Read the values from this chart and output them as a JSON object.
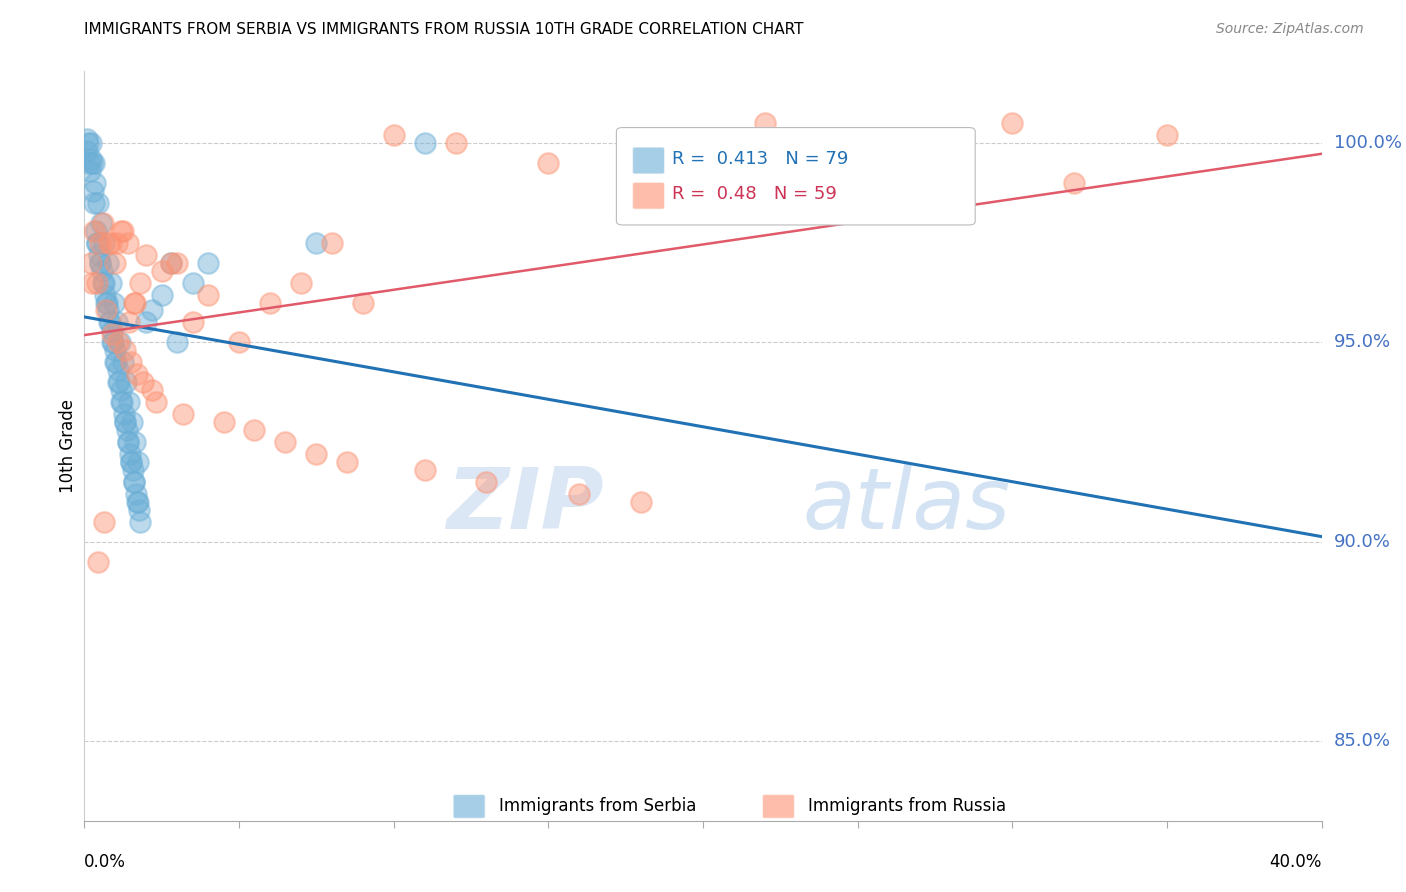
{
  "title": "IMMIGRANTS FROM SERBIA VS IMMIGRANTS FROM RUSSIA 10TH GRADE CORRELATION CHART",
  "source": "Source: ZipAtlas.com",
  "ylabel": "10th Grade",
  "right_yticks": [
    85.0,
    90.0,
    95.0,
    100.0
  ],
  "serbia_R": 0.413,
  "serbia_N": 79,
  "russia_R": 0.48,
  "russia_N": 59,
  "serbia_color": "#6baed6",
  "russia_color": "#fc9272",
  "serbia_line_color": "#2171b5",
  "russia_line_color": "#e05a6a",
  "serbia_x": [
    0.08,
    0.1,
    0.12,
    0.15,
    0.18,
    0.2,
    0.22,
    0.25,
    0.28,
    0.3,
    0.32,
    0.35,
    0.38,
    0.4,
    0.42,
    0.45,
    0.48,
    0.5,
    0.52,
    0.55,
    0.58,
    0.6,
    0.62,
    0.65,
    0.68,
    0.7,
    0.72,
    0.75,
    0.78,
    0.8,
    0.82,
    0.85,
    0.88,
    0.9,
    0.92,
    0.95,
    0.98,
    1.0,
    1.02,
    1.05,
    1.08,
    1.1,
    1.12,
    1.15,
    1.18,
    1.2,
    1.22,
    1.25,
    1.28,
    1.3,
    1.32,
    1.35,
    1.38,
    1.4,
    1.42,
    1.45,
    1.48,
    1.5,
    1.52,
    1.55,
    1.58,
    1.6,
    1.62,
    1.65,
    1.68,
    1.7,
    1.72,
    1.75,
    1.78,
    1.8,
    2.0,
    2.2,
    2.5,
    2.8,
    3.0,
    3.5,
    4.0,
    7.5,
    11.0
  ],
  "serbia_y": [
    99.8,
    100.1,
    100.0,
    99.5,
    99.3,
    100.0,
    99.6,
    99.5,
    98.8,
    99.5,
    98.5,
    99.0,
    97.8,
    97.5,
    97.5,
    98.5,
    97.2,
    97.0,
    97.0,
    98.0,
    96.8,
    96.5,
    96.5,
    97.5,
    96.2,
    96.0,
    96.0,
    97.0,
    95.8,
    95.5,
    95.5,
    96.5,
    95.3,
    95.0,
    95.0,
    96.0,
    94.8,
    94.5,
    94.5,
    95.5,
    94.3,
    94.0,
    94.0,
    95.0,
    93.8,
    93.5,
    93.5,
    94.5,
    93.2,
    93.0,
    93.0,
    94.0,
    92.8,
    92.5,
    92.5,
    93.5,
    92.2,
    92.0,
    92.0,
    93.0,
    91.8,
    91.5,
    91.5,
    92.5,
    91.2,
    91.0,
    91.0,
    92.0,
    90.8,
    90.5,
    95.5,
    95.8,
    96.2,
    97.0,
    95.0,
    96.5,
    97.0,
    97.5,
    100.0
  ],
  "russia_x": [
    0.2,
    0.25,
    0.3,
    0.4,
    0.45,
    0.5,
    0.6,
    0.65,
    0.7,
    0.8,
    0.85,
    0.9,
    1.0,
    1.05,
    1.1,
    1.2,
    1.25,
    1.3,
    1.4,
    1.45,
    1.5,
    1.6,
    1.65,
    1.7,
    1.8,
    1.9,
    2.0,
    2.2,
    2.3,
    2.5,
    2.8,
    3.0,
    3.2,
    3.5,
    4.0,
    4.5,
    5.0,
    5.5,
    6.0,
    6.5,
    7.0,
    7.5,
    8.0,
    8.5,
    9.0,
    10.0,
    11.0,
    12.0,
    13.0,
    15.0,
    16.0,
    18.0,
    20.0,
    22.0,
    25.0,
    28.0,
    30.0,
    32.0,
    35.0
  ],
  "russia_y": [
    97.0,
    96.5,
    97.8,
    96.5,
    89.5,
    97.5,
    98.0,
    90.5,
    95.8,
    97.5,
    97.5,
    95.2,
    97.0,
    97.5,
    95.0,
    97.8,
    97.8,
    94.8,
    97.5,
    95.5,
    94.5,
    96.0,
    96.0,
    94.2,
    96.5,
    94.0,
    97.2,
    93.8,
    93.5,
    96.8,
    97.0,
    97.0,
    93.2,
    95.5,
    96.2,
    93.0,
    95.0,
    92.8,
    96.0,
    92.5,
    96.5,
    92.2,
    97.5,
    92.0,
    96.0,
    100.2,
    91.8,
    100.0,
    91.5,
    99.5,
    91.2,
    91.0,
    100.0,
    100.5,
    100.0,
    99.5,
    100.5,
    99.0,
    100.2
  ],
  "watermark_zip": "ZIP",
  "watermark_atlas": "atlas",
  "fig_width": 14.06,
  "fig_height": 8.92,
  "dpi": 100,
  "xlim": [
    0,
    40
  ],
  "ylim": [
    83,
    101.8
  ]
}
